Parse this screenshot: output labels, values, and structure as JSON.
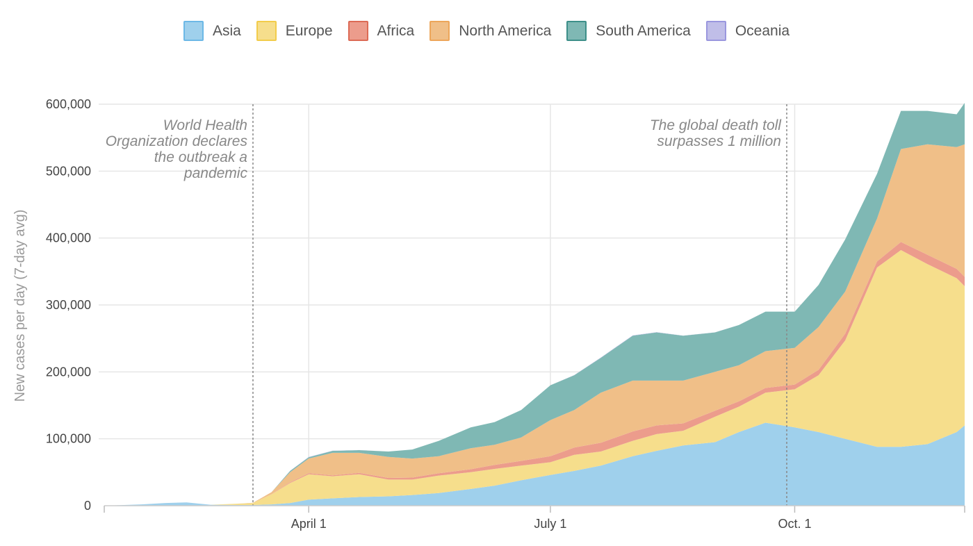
{
  "chart_data": {
    "type": "area",
    "stacked": true,
    "ylabel": "New cases per day (7-day avg)",
    "ylim": [
      0,
      600000
    ],
    "xlim": [
      "2020-01-15",
      "2020-12-04"
    ],
    "grid": true,
    "legend_position": "top",
    "y_ticks": [
      {
        "value": 0,
        "label": "0"
      },
      {
        "value": 100000,
        "label": "100,000"
      },
      {
        "value": 200000,
        "label": "200,000"
      },
      {
        "value": 300000,
        "label": "300,000"
      },
      {
        "value": 400000,
        "label": "400,000"
      },
      {
        "value": 500000,
        "label": "500,000"
      },
      {
        "value": 600000,
        "label": "600,000"
      }
    ],
    "x_ticks": [
      {
        "date": "2020-04-01",
        "label": "April 1"
      },
      {
        "date": "2020-07-01",
        "label": "July 1"
      },
      {
        "date": "2020-10-01",
        "label": "Oct. 1"
      }
    ],
    "annotations": [
      {
        "date": "2020-03-11",
        "lines": [
          "World Health",
          "Organization declares",
          "the outbreak a",
          "pandemic"
        ]
      },
      {
        "date": "2020-09-28",
        "lines": [
          "The global death toll",
          "surpasses 1 million"
        ]
      }
    ],
    "x": [
      "2020-01-15",
      "2020-01-29",
      "2020-02-07",
      "2020-02-15",
      "2020-02-24",
      "2020-03-05",
      "2020-03-11",
      "2020-03-18",
      "2020-03-25",
      "2020-04-01",
      "2020-04-10",
      "2020-04-20",
      "2020-05-01",
      "2020-05-10",
      "2020-05-20",
      "2020-06-01",
      "2020-06-10",
      "2020-06-20",
      "2020-07-01",
      "2020-07-10",
      "2020-07-20",
      "2020-08-01",
      "2020-08-10",
      "2020-08-20",
      "2020-09-01",
      "2020-09-10",
      "2020-09-20",
      "2020-10-01",
      "2020-10-10",
      "2020-10-20",
      "2020-11-01",
      "2020-11-10",
      "2020-11-20",
      "2020-12-01",
      "2020-12-04"
    ],
    "series": [
      {
        "name": "Asia",
        "color": "#9fd0ec",
        "stroke": "#6cb8e6",
        "values": [
          0,
          2000,
          4000,
          5000,
          1500,
          1000,
          1000,
          2000,
          4000,
          9000,
          11000,
          13000,
          14000,
          16000,
          19000,
          25000,
          30000,
          38000,
          46000,
          52000,
          60000,
          74000,
          82000,
          90000,
          95000,
          110000,
          124000,
          117000,
          110000,
          100000,
          88000,
          88000,
          92000,
          110000,
          120000
        ]
      },
      {
        "name": "Europe",
        "color": "#f6de8c",
        "stroke": "#f2cc4b",
        "values": [
          0,
          0,
          0,
          0,
          0,
          2000,
          3000,
          15000,
          30000,
          38000,
          33000,
          34000,
          25000,
          23000,
          26000,
          25000,
          25000,
          22000,
          19000,
          24000,
          21000,
          23000,
          25000,
          22000,
          38000,
          38000,
          45000,
          57000,
          85000,
          147000,
          268000,
          294000,
          269000,
          230000,
          208000
        ]
      },
      {
        "name": "Africa",
        "color": "#ec9c8c",
        "stroke": "#dc6a55",
        "values": [
          0,
          0,
          0,
          0,
          0,
          0,
          0,
          200,
          1000,
          1500,
          1500,
          2000,
          2500,
          3000,
          3500,
          4500,
          6000,
          7000,
          9000,
          11000,
          13000,
          14000,
          13000,
          11000,
          9000,
          8000,
          7000,
          7000,
          8000,
          10000,
          9000,
          12000,
          14000,
          14000,
          14000
        ]
      },
      {
        "name": "North America",
        "color": "#f0bf88",
        "stroke": "#eda65a",
        "values": [
          0,
          0,
          0,
          0,
          0,
          0,
          500,
          3000,
          15000,
          22000,
          33500,
          30000,
          31500,
          28500,
          25500,
          31500,
          30000,
          35000,
          54000,
          56000,
          75000,
          76000,
          67000,
          64000,
          58000,
          54000,
          55000,
          55000,
          64000,
          63000,
          64000,
          139000,
          165000,
          182000,
          198000
        ]
      },
      {
        "name": "South America",
        "color": "#7fb8b4",
        "stroke": "#3d8f89",
        "values": [
          0,
          0,
          0,
          0,
          0,
          0,
          0,
          0,
          2000,
          2000,
          3000,
          4000,
          8000,
          13500,
          23000,
          31000,
          34000,
          41000,
          52000,
          52000,
          52000,
          67000,
          72000,
          67000,
          59000,
          60000,
          59000,
          54000,
          63000,
          78000,
          67000,
          57000,
          50000,
          49000,
          62000
        ]
      },
      {
        "name": "Oceania",
        "color": "#c0bee8",
        "stroke": "#9a97de",
        "values": [
          0,
          0,
          0,
          0,
          0,
          0,
          0,
          0,
          300,
          400,
          300,
          100,
          0,
          0,
          0,
          0,
          0,
          0,
          0,
          300,
          500,
          500,
          400,
          200,
          100,
          0,
          0,
          0,
          0,
          0,
          0,
          0,
          0,
          0,
          0
        ]
      }
    ]
  }
}
